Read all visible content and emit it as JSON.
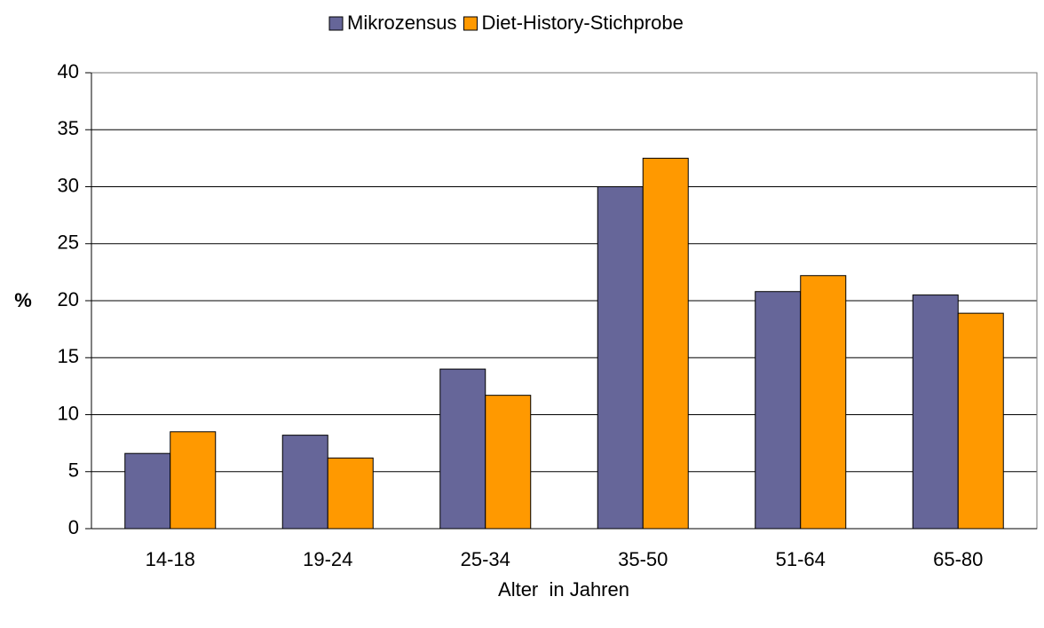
{
  "chart_data": {
    "type": "bar",
    "categories": [
      "14-18",
      "19-24",
      "25-34",
      "35-50",
      "51-64",
      "65-80"
    ],
    "series": [
      {
        "name": "Mikrozensus",
        "color": "#666699",
        "values": [
          6.6,
          8.2,
          14.0,
          30.0,
          20.8,
          20.5
        ]
      },
      {
        "name": "Diet-History-Stichprobe",
        "color": "#ff9900",
        "values": [
          8.5,
          6.2,
          11.7,
          32.5,
          22.2,
          18.9
        ]
      }
    ],
    "xlabel": "Alter  in Jahren",
    "ylabel": "%",
    "ylim": [
      0,
      40
    ],
    "yticks": [
      0,
      5,
      10,
      15,
      20,
      25,
      30,
      35,
      40
    ],
    "grid": true,
    "legend": "top"
  }
}
